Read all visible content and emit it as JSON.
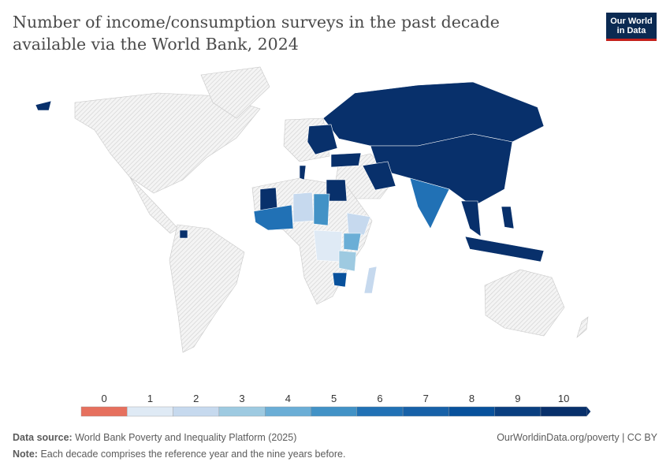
{
  "title": "Number of income/consumption surveys in the past decade available via the World Bank, 2024",
  "logo": {
    "line1": "Our World",
    "line2": "in Data"
  },
  "legend": {
    "bins": [
      {
        "label": "0",
        "color": "#e6705e"
      },
      {
        "label": "1",
        "color": "#dfeaf5"
      },
      {
        "label": "2",
        "color": "#c6d9ee"
      },
      {
        "label": "3",
        "color": "#9ecae1"
      },
      {
        "label": "4",
        "color": "#6baed6"
      },
      {
        "label": "5",
        "color": "#4292c6"
      },
      {
        "label": "6",
        "color": "#2171b5"
      },
      {
        "label": "7",
        "color": "#1761a8"
      },
      {
        "label": "8",
        "color": "#08519c"
      },
      {
        "label": "9",
        "color": "#0a3f80"
      },
      {
        "label": "10",
        "color": "#08306b"
      }
    ],
    "no_data_pattern": "hatched-gray"
  },
  "map": {
    "regions": {
      "russia": 10,
      "china_central_asia": 10,
      "india": 6,
      "iran": 10,
      "turkey": 10,
      "eastern_europe": 10,
      "egypt": 10,
      "southeast_asia": 10,
      "indonesia": 10,
      "philippines": 10,
      "alaska_bit": 10,
      "west_africa": 6,
      "sahel": 2,
      "sudan": 5,
      "ethiopia": 2,
      "kenya": 4,
      "congo": 1,
      "tanzania": 3,
      "zimbabwe": 8,
      "madagascar": 2,
      "mauritania": 10,
      "suriname": 10,
      "tunisia": 10
    }
  },
  "footer": {
    "source_label": "Data source:",
    "source": "World Bank Poverty and Inequality Platform (2025)",
    "link": "OurWorldinData.org/poverty | CC BY",
    "note_label": "Note:",
    "note": "Each decade comprises the reference year and the nine years before."
  }
}
